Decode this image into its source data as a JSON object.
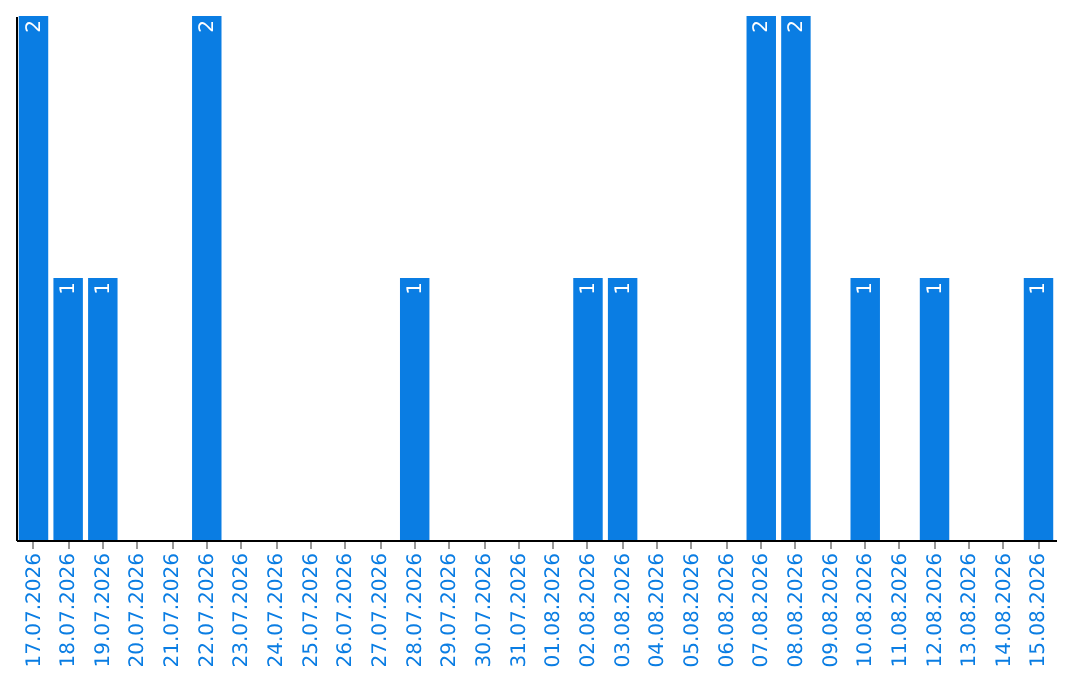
{
  "chart_data": {
    "type": "bar",
    "categories": [
      "17.07.2026",
      "18.07.2026",
      "19.07.2026",
      "20.07.2026",
      "21.07.2026",
      "22.07.2026",
      "23.07.2026",
      "24.07.2026",
      "25.07.2026",
      "26.07.2026",
      "27.07.2026",
      "28.07.2026",
      "29.07.2026",
      "30.07.2026",
      "31.07.2026",
      "01.08.2026",
      "02.08.2026",
      "03.08.2026",
      "04.08.2026",
      "05.08.2026",
      "06.08.2026",
      "07.08.2026",
      "08.08.2026",
      "09.08.2026",
      "10.08.2026",
      "11.08.2026",
      "12.08.2026",
      "13.08.2026",
      "14.08.2026",
      "15.08.2026"
    ],
    "values": [
      2,
      1,
      1,
      0,
      0,
      2,
      0,
      0,
      0,
      0,
      0,
      1,
      0,
      0,
      0,
      0,
      1,
      1,
      0,
      0,
      0,
      2,
      2,
      0,
      1,
      0,
      1,
      0,
      0,
      1
    ],
    "value_labels": [
      "2",
      "1",
      "1",
      null,
      null,
      "2",
      null,
      null,
      null,
      null,
      null,
      "1",
      null,
      null,
      null,
      null,
      "1",
      "1",
      null,
      null,
      null,
      "2",
      "2",
      null,
      "1",
      null,
      "1",
      null,
      null,
      "1"
    ],
    "color": "#0a7de3",
    "ylim": [
      0,
      2
    ],
    "tick_labels": "x",
    "grid": false
  }
}
